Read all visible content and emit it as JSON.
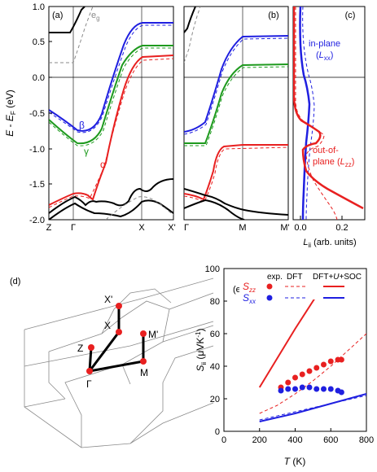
{
  "panels": {
    "a": {
      "label": "(a)",
      "eg_label": "e",
      "eg_sub": "g",
      "beta": "β",
      "gamma": "γ",
      "alpha": "α",
      "kpoints": [
        "Z",
        "Γ",
        "X",
        "X'"
      ]
    },
    "b": {
      "label": "(b)",
      "kpoints": [
        "Γ",
        "M",
        "M'"
      ]
    },
    "c": {
      "label": "(c)",
      "inplane_1": "in-plane",
      "inplane_L": "L",
      "inplane_sub": "xx",
      "out_1": "out-of-",
      "out_2": "plane (",
      "out_L": "L",
      "out_sub": "zz",
      "close": ")",
      "xlabel_L": "L",
      "xlabel_sub": "ii",
      "xlabel_rest": " (arb. units)"
    },
    "d": {
      "label": "(d)",
      "points": [
        "X'",
        "X",
        "Z",
        "M'",
        "M",
        "Γ"
      ]
    },
    "e": {
      "label": "(e)"
    }
  },
  "shared": {
    "ylabel_E": "E",
    "ylabel_mid": " - ",
    "ylabel_EF": "E",
    "ylabel_F": "F",
    "ylabel_unit": " (eV)"
  },
  "legend": {
    "col_exp": "exp.",
    "col_dft": "DFT",
    "col_dftu": "DFT+",
    "col_U": "U",
    "col_soc": "+SOC",
    "szz_S": "S",
    "szz_sub": "zz",
    "sxx_S": "S",
    "sxx_sub": "xx"
  },
  "colors": {
    "blue": "#1f1fe0",
    "green": "#1e9a1e",
    "red": "#e82020",
    "black": "#000000",
    "gray": "#8a8a8a"
  },
  "chart_data": [
    {
      "type": "line",
      "panel": "a",
      "ylabel": "E - EF (eV)",
      "ylim": [
        -2.0,
        1.0
      ],
      "yticks": [
        -2.0,
        -1.5,
        -1.0,
        -0.5,
        0.0,
        0.5,
        1.0
      ],
      "xticks": [
        "Z",
        "Γ",
        "X",
        "X'"
      ],
      "series": [
        {
          "name": "β",
          "color": "blue",
          "x": [
            0.0,
            0.1,
            0.2,
            0.32,
            0.45,
            0.55,
            0.65,
            0.78,
            0.9,
            1.0
          ],
          "y": [
            -0.58,
            -0.7,
            -0.77,
            -0.62,
            -0.1,
            0.45,
            0.75,
            0.82,
            0.82,
            0.82
          ]
        },
        {
          "name": "γ",
          "color": "green",
          "x": [
            0.0,
            0.1,
            0.2,
            0.32,
            0.45,
            0.55,
            0.65,
            0.78,
            0.9,
            1.0
          ],
          "y": [
            -0.65,
            -0.82,
            -0.92,
            -0.82,
            -0.25,
            0.25,
            0.45,
            0.5,
            0.5,
            0.5
          ]
        },
        {
          "name": "α",
          "color": "red",
          "x": [
            0.0,
            0.1,
            0.15,
            0.22,
            0.27,
            0.35,
            0.45,
            0.55,
            0.65,
            0.78,
            0.9,
            1.0
          ],
          "y": [
            -1.75,
            -1.6,
            -1.58,
            -1.62,
            -1.65,
            -1.2,
            -0.35,
            0.15,
            0.33,
            0.37,
            0.37,
            0.37
          ]
        },
        {
          "name": "",
          "color": "black",
          "x": [
            0.0,
            0.1,
            0.18,
            0.25,
            0.35,
            0.5,
            0.6,
            0.68,
            0.75,
            0.85,
            1.0
          ],
          "y": [
            -1.85,
            -1.65,
            -1.75,
            -1.7,
            -1.72,
            -1.85,
            -1.55,
            -1.5,
            -1.55,
            -1.45,
            -1.45
          ]
        },
        {
          "name": "",
          "color": "black",
          "x": [
            0.0,
            0.08,
            0.1,
            0.14,
            0.17
          ],
          "y": [
            0.67,
            0.67,
            0.75,
            0.9,
            1.0
          ]
        }
      ]
    },
    {
      "type": "line",
      "panel": "b",
      "ylim": [
        -2.0,
        1.0
      ],
      "xticks": [
        "Γ",
        "M",
        "M'"
      ],
      "series": [
        {
          "name": "",
          "color": "blue",
          "x": [
            0.0,
            0.2,
            0.35,
            0.48,
            0.58,
            0.72,
            1.0
          ],
          "y": [
            -0.77,
            -0.7,
            -0.4,
            0.2,
            0.55,
            0.72,
            0.72
          ]
        },
        {
          "name": "",
          "color": "green",
          "x": [
            0.0,
            0.2,
            0.35,
            0.48,
            0.58,
            0.72,
            1.0
          ],
          "y": [
            -0.92,
            -0.85,
            -0.55,
            0.0,
            0.25,
            0.28,
            0.28
          ]
        },
        {
          "name": "",
          "color": "red",
          "x": [
            0.0,
            0.1,
            0.2,
            0.25,
            0.3,
            0.35,
            0.45,
            0.72,
            1.0
          ],
          "y": [
            -1.58,
            -1.6,
            -1.65,
            -1.4,
            -1.0,
            -0.85,
            -0.82,
            -0.8,
            -0.8
          ]
        }
      ]
    },
    {
      "type": "line",
      "panel": "c",
      "xlabel": "Lii (arb. units)",
      "xlim": [
        0,
        0.3
      ],
      "xticks": [
        0.0,
        0.2
      ],
      "ylim": [
        -2.0,
        1.0
      ],
      "series": [
        {
          "name": "in-plane (Lxx)",
          "color": "blue",
          "x": [
            0.0,
            0.01,
            0.02,
            0.04,
            0.06,
            0.05,
            0.03,
            0.02,
            0.01
          ],
          "y": [
            1.0,
            0.6,
            0.3,
            0.0,
            -0.3,
            -0.6,
            -1.0,
            -1.5,
            -2.0
          ]
        },
        {
          "name": "out-of-plane (Lzz)",
          "color": "red",
          "x": [
            0.0,
            0.0,
            0.02,
            0.1,
            0.02,
            0.03,
            0.1,
            0.3
          ],
          "y": [
            1.0,
            -0.3,
            -0.6,
            -0.8,
            -1.0,
            -1.2,
            -1.6,
            -1.9
          ]
        }
      ]
    },
    {
      "type": "scatter",
      "panel": "e",
      "xlabel": "T (K)",
      "ylabel": "Sii (μVK-1)",
      "xlim": [
        0,
        800
      ],
      "ylim": [
        0,
        100
      ],
      "xticks": [
        0,
        200,
        400,
        600,
        800
      ],
      "yticks": [
        0,
        20,
        40,
        60,
        80,
        100
      ],
      "series": [
        {
          "name": "Szz exp.",
          "color": "red",
          "x": [
            320,
            360,
            400,
            440,
            480,
            520,
            560,
            600,
            640,
            660
          ],
          "y": [
            27,
            30,
            33,
            35,
            37,
            39,
            41,
            43,
            44,
            44
          ]
        },
        {
          "name": "Sxx exp.",
          "color": "blue",
          "x": [
            320,
            360,
            400,
            440,
            480,
            520,
            560,
            600,
            640,
            660
          ],
          "y": [
            25,
            26,
            26,
            27,
            27,
            26,
            26,
            26,
            25,
            24
          ]
        },
        {
          "name": "Szz DFT",
          "color": "red",
          "x": [
            200,
            300,
            400,
            500,
            600,
            700,
            800
          ],
          "y": [
            11,
            16,
            23,
            31,
            40,
            50,
            60
          ]
        },
        {
          "name": "Sxx DFT",
          "color": "blue",
          "x": [
            200,
            400,
            600,
            800
          ],
          "y": [
            7,
            12,
            17,
            22
          ]
        },
        {
          "name": "Szz DFT+U+SOC",
          "color": "red",
          "x": [
            200,
            300,
            400,
            500,
            560
          ],
          "y": [
            27,
            45,
            63,
            80,
            90
          ]
        },
        {
          "name": "Sxx DFT+U+SOC",
          "color": "blue",
          "x": [
            200,
            400,
            600,
            800
          ],
          "y": [
            6,
            11,
            17,
            23
          ]
        }
      ]
    }
  ]
}
